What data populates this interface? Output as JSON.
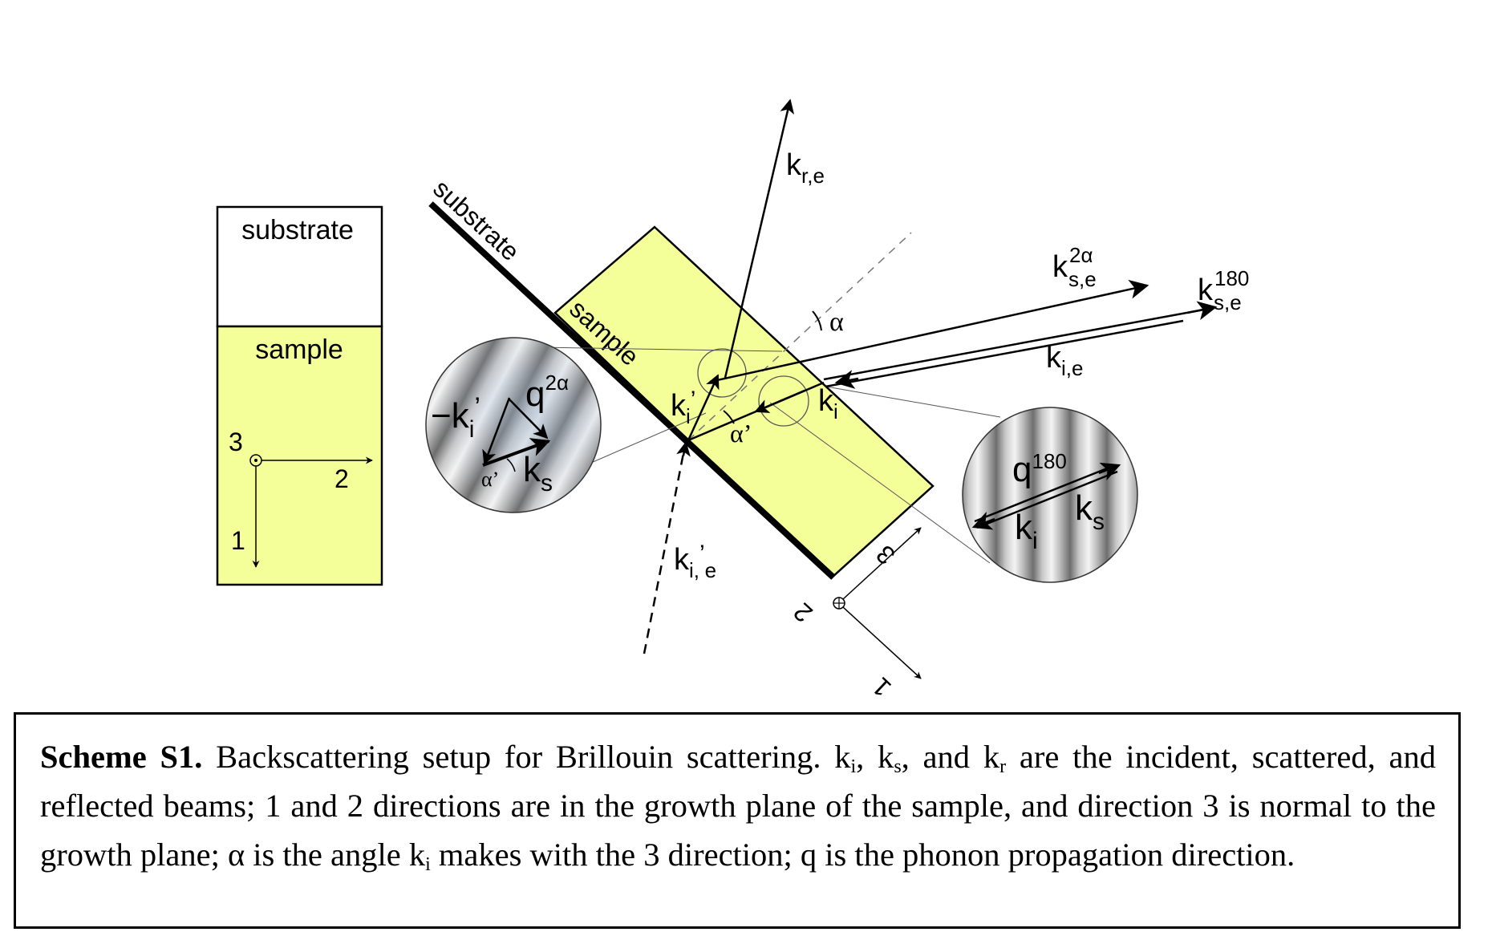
{
  "left_panel": {
    "substrate_label": "substrate",
    "sample_label": "sample",
    "axis_1": "1",
    "axis_2": "2",
    "axis_3": "3"
  },
  "main_diagram": {
    "substrate_label": "substrate",
    "sample_label": "sample",
    "k_re": {
      "main": "k",
      "sub": "r,e"
    },
    "k_se_2a": {
      "main": "k",
      "sub": "s,e",
      "sup": "2α"
    },
    "k_se_180": {
      "main": "k",
      "sub": "s,e",
      "sup": "180"
    },
    "k_ie": {
      "main": "k",
      "sub": "i,e"
    },
    "k_i": {
      "main": "k",
      "sub": "i"
    },
    "k_i_prime": {
      "main": "k",
      "sub": "i",
      "prime": "’"
    },
    "k_i_prime_e": {
      "main": "k",
      "sub": "i,",
      "prime": "’",
      "sub2": "e"
    },
    "alpha": "α",
    "alpha_prime": "α’",
    "axis_1": "1",
    "axis_2": "2",
    "axis_3": "3"
  },
  "inset_left": {
    "neg_k": "−k",
    "neg_k_sub": "i",
    "neg_k_prime": "’",
    "q": "q",
    "q_sup": "2α",
    "ks_main": "k",
    "ks_sub": "s",
    "alpha_prime": "α’"
  },
  "inset_right": {
    "q": "q",
    "q_sup": "180",
    "ki_main": "k",
    "ki_sub": "i",
    "ks_main": "k",
    "ks_sub": "s"
  },
  "caption": {
    "title": "Scheme S1.",
    "t1": " Backscattering setup for Brillouin scattering. k",
    "s1": "i",
    "t2": ", k",
    "s2": "s",
    "t3": ", and k",
    "s3": "r",
    "t4": " are the incident, scattered, and reflected beams;  1 and 2 directions are in the growth plane of the sample, and direction 3 is normal to the growth plane;  α is the angle k",
    "s4": "i",
    "t5": " makes with the 3 direction; q is the phonon propagation direction."
  },
  "colors": {
    "sample_fill": "#f5ff99",
    "ink": "#000000"
  }
}
